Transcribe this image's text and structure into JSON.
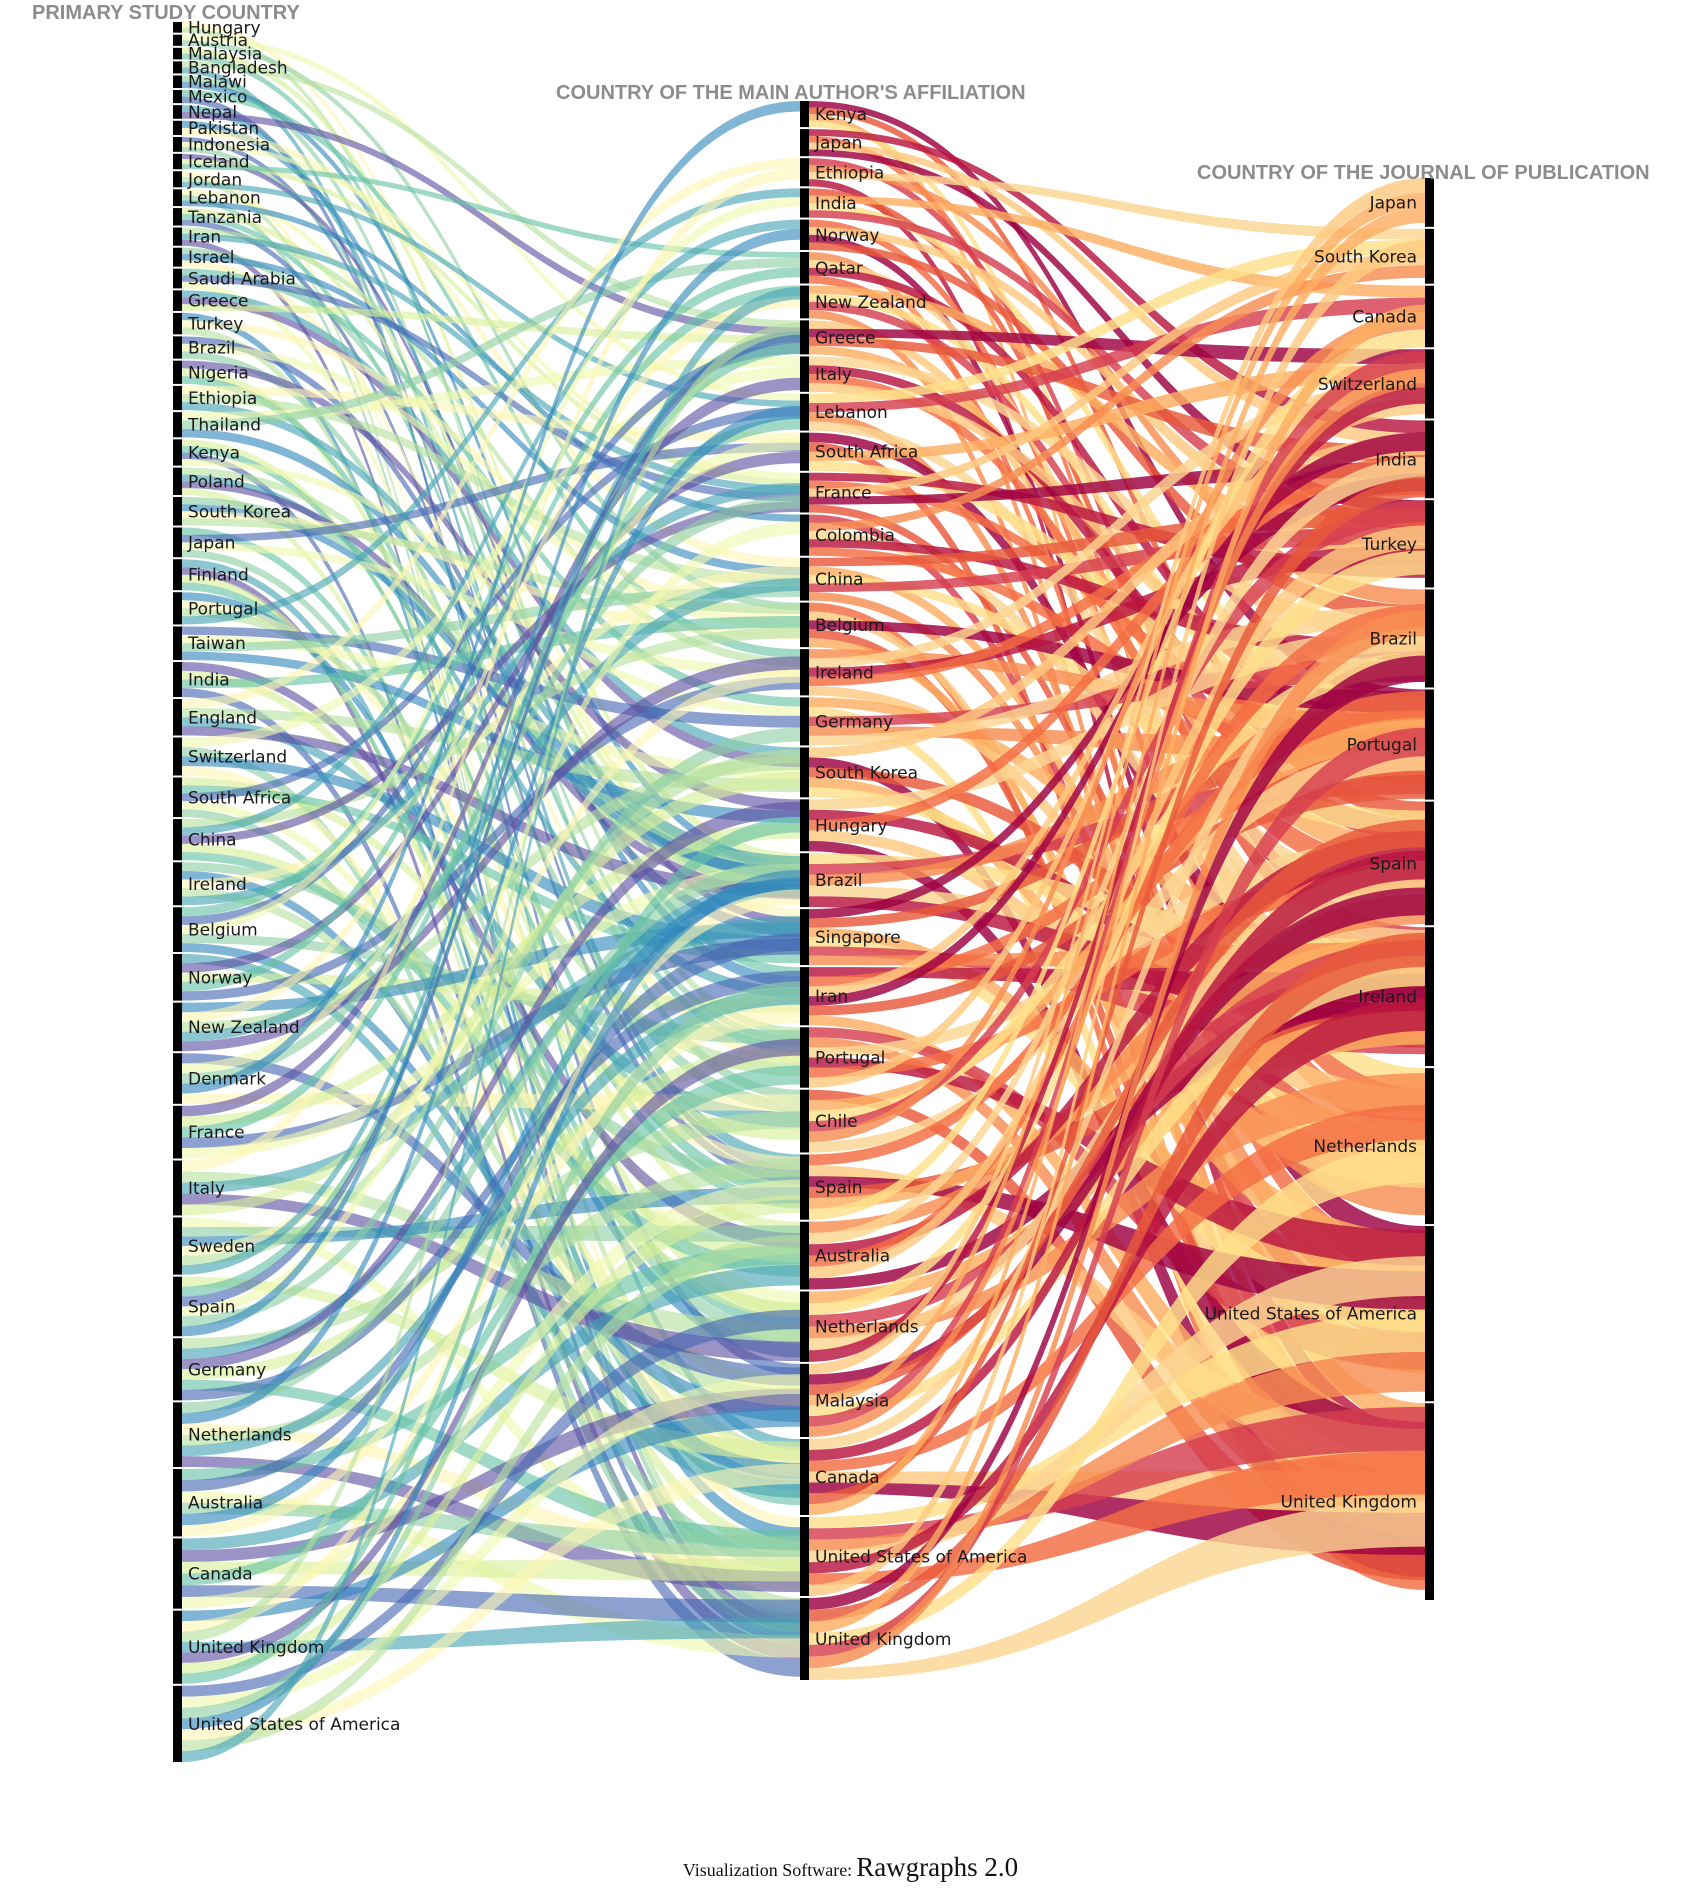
{
  "chart_data": {
    "type": "alluvial",
    "columns": [
      {
        "title": "PRIMARY STUDY COUNTRY",
        "nodes": [
          "Hungary",
          "Austria",
          "Malaysia",
          "Bangladesh",
          "Malawi",
          "Mexico",
          "Nepal",
          "Pakistan",
          "Indonesia",
          "Iceland",
          "Jordan",
          "Lebanon",
          "Tanzania",
          "Iran",
          "Israel",
          "Saudi Arabia",
          "Greece",
          "Turkey",
          "Brazil",
          "Nigeria",
          "Ethiopia",
          "Thailand",
          "Kenya",
          "Poland",
          "South Korea",
          "Japan",
          "Finland",
          "Portugal",
          "Taiwan",
          "India",
          "England",
          "Switzerland",
          "South Africa",
          "China",
          "Ireland",
          "Belgium",
          "Norway",
          "New Zealand",
          "Denmark",
          "France",
          "Italy",
          "Sweden",
          "Spain",
          "Germany",
          "Netherlands",
          "Australia",
          "Canada",
          "United Kingdom",
          "United States of America"
        ]
      },
      {
        "title": "COUNTRY OF THE MAIN AUTHOR'S AFFILIATION",
        "nodes": [
          "Kenya",
          "Japan",
          "Ethiopia",
          "India",
          "Norway",
          "Qatar",
          "New Zealand",
          "Greece",
          "Italy",
          "Lebanon",
          "South Africa",
          "France",
          "Colombia",
          "China",
          "Belgium",
          "Ireland",
          "Germany",
          "South Korea",
          "Hungary",
          "Brazil",
          "Singapore",
          "Iran",
          "Portugal",
          "Chile",
          "Spain",
          "Australia",
          "Netherlands",
          "Malaysia",
          "Canada",
          "United States of America",
          "United Kingdom"
        ]
      },
      {
        "title": "COUNTRY OF THE JOURNAL OF PUBLICATION",
        "nodes": [
          "Japan",
          "South Korea",
          "Canada",
          "Switzerland",
          "India",
          "Turkey",
          "Brazil",
          "Portugal",
          "Spain",
          "Ireland",
          "Netherlands",
          "United States of America",
          "United Kingdom"
        ]
      }
    ],
    "footer": {
      "label": "Visualization Software:",
      "software": "Rawgraphs 2.0"
    }
  }
}
